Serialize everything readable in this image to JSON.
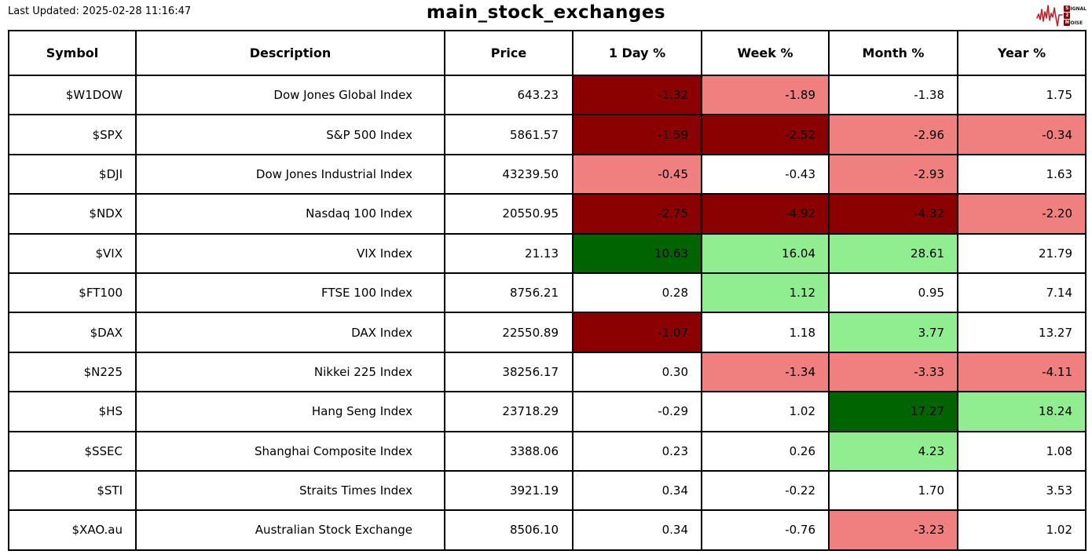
{
  "header": {
    "last_updated": "Last Updated: 2025-02-28 11:16:47",
    "title": "main_stock_exchanges",
    "logo": {
      "rows": [
        {
          "initial": "S",
          "rest": "IGNAL"
        },
        {
          "initial": "2",
          "rest": ""
        },
        {
          "initial": "N",
          "rest": "OISE"
        }
      ]
    }
  },
  "colors": {
    "dark_red": "#8b0000",
    "light_red": "#f08080",
    "dark_green": "#006400",
    "light_green": "#90ee90",
    "none": "#ffffff"
  },
  "chart_data": {
    "type": "table",
    "title": "main_stock_exchanges",
    "columns": [
      "Symbol",
      "Description",
      "Price",
      "1 Day %",
      "Week %",
      "Month %",
      "Year %"
    ],
    "rows": [
      {
        "symbol": "$W1DOW",
        "description": "Dow Jones Global Index",
        "price": "643.23",
        "pct": [
          {
            "v": "-1.32",
            "bg": "dark_red"
          },
          {
            "v": "-1.89",
            "bg": "light_red"
          },
          {
            "v": "-1.38",
            "bg": "none"
          },
          {
            "v": "1.75",
            "bg": "none"
          }
        ]
      },
      {
        "symbol": "$SPX",
        "description": "S&P 500 Index",
        "price": "5861.57",
        "pct": [
          {
            "v": "-1.59",
            "bg": "dark_red"
          },
          {
            "v": "-2.52",
            "bg": "dark_red"
          },
          {
            "v": "-2.96",
            "bg": "light_red"
          },
          {
            "v": "-0.34",
            "bg": "light_red"
          }
        ]
      },
      {
        "symbol": "$DJI",
        "description": "Dow Jones Industrial Index",
        "price": "43239.50",
        "pct": [
          {
            "v": "-0.45",
            "bg": "light_red"
          },
          {
            "v": "-0.43",
            "bg": "none"
          },
          {
            "v": "-2.93",
            "bg": "light_red"
          },
          {
            "v": "1.63",
            "bg": "none"
          }
        ]
      },
      {
        "symbol": "$NDX",
        "description": "Nasdaq 100 Index",
        "price": "20550.95",
        "pct": [
          {
            "v": "-2.75",
            "bg": "dark_red"
          },
          {
            "v": "-4.92",
            "bg": "dark_red"
          },
          {
            "v": "-4.32",
            "bg": "dark_red"
          },
          {
            "v": "-2.20",
            "bg": "light_red"
          }
        ]
      },
      {
        "symbol": "$VIX",
        "description": "VIX Index",
        "price": "21.13",
        "pct": [
          {
            "v": "10.63",
            "bg": "dark_green"
          },
          {
            "v": "16.04",
            "bg": "light_green"
          },
          {
            "v": "28.61",
            "bg": "light_green"
          },
          {
            "v": "21.79",
            "bg": "none"
          }
        ]
      },
      {
        "symbol": "$FT100",
        "description": "FTSE 100 Index",
        "price": "8756.21",
        "pct": [
          {
            "v": "0.28",
            "bg": "none"
          },
          {
            "v": "1.12",
            "bg": "light_green"
          },
          {
            "v": "0.95",
            "bg": "none"
          },
          {
            "v": "7.14",
            "bg": "none"
          }
        ]
      },
      {
        "symbol": "$DAX",
        "description": "DAX Index",
        "price": "22550.89",
        "pct": [
          {
            "v": "-1.07",
            "bg": "dark_red"
          },
          {
            "v": "1.18",
            "bg": "none"
          },
          {
            "v": "3.77",
            "bg": "light_green"
          },
          {
            "v": "13.27",
            "bg": "none"
          }
        ]
      },
      {
        "symbol": "$N225",
        "description": "Nikkei 225 Index",
        "price": "38256.17",
        "pct": [
          {
            "v": "0.30",
            "bg": "none"
          },
          {
            "v": "-1.34",
            "bg": "light_red"
          },
          {
            "v": "-3.33",
            "bg": "light_red"
          },
          {
            "v": "-4.11",
            "bg": "light_red"
          }
        ]
      },
      {
        "symbol": "$HS",
        "description": "Hang Seng Index",
        "price": "23718.29",
        "pct": [
          {
            "v": "-0.29",
            "bg": "none"
          },
          {
            "v": "1.02",
            "bg": "none"
          },
          {
            "v": "17.27",
            "bg": "dark_green"
          },
          {
            "v": "18.24",
            "bg": "light_green"
          }
        ]
      },
      {
        "symbol": "$SSEC",
        "description": "Shanghai Composite Index",
        "price": "3388.06",
        "pct": [
          {
            "v": "0.23",
            "bg": "none"
          },
          {
            "v": "0.26",
            "bg": "none"
          },
          {
            "v": "4.23",
            "bg": "light_green"
          },
          {
            "v": "1.08",
            "bg": "none"
          }
        ]
      },
      {
        "symbol": "$STI",
        "description": "Straits Times Index",
        "price": "3921.19",
        "pct": [
          {
            "v": "0.34",
            "bg": "none"
          },
          {
            "v": "-0.22",
            "bg": "none"
          },
          {
            "v": "1.70",
            "bg": "none"
          },
          {
            "v": "3.53",
            "bg": "none"
          }
        ]
      },
      {
        "symbol": "$XAO.au",
        "description": "Australian Stock Exchange",
        "price": "8506.10",
        "pct": [
          {
            "v": "0.34",
            "bg": "none"
          },
          {
            "v": "-0.76",
            "bg": "none"
          },
          {
            "v": "-3.23",
            "bg": "light_red"
          },
          {
            "v": "1.02",
            "bg": "none"
          }
        ]
      }
    ]
  }
}
